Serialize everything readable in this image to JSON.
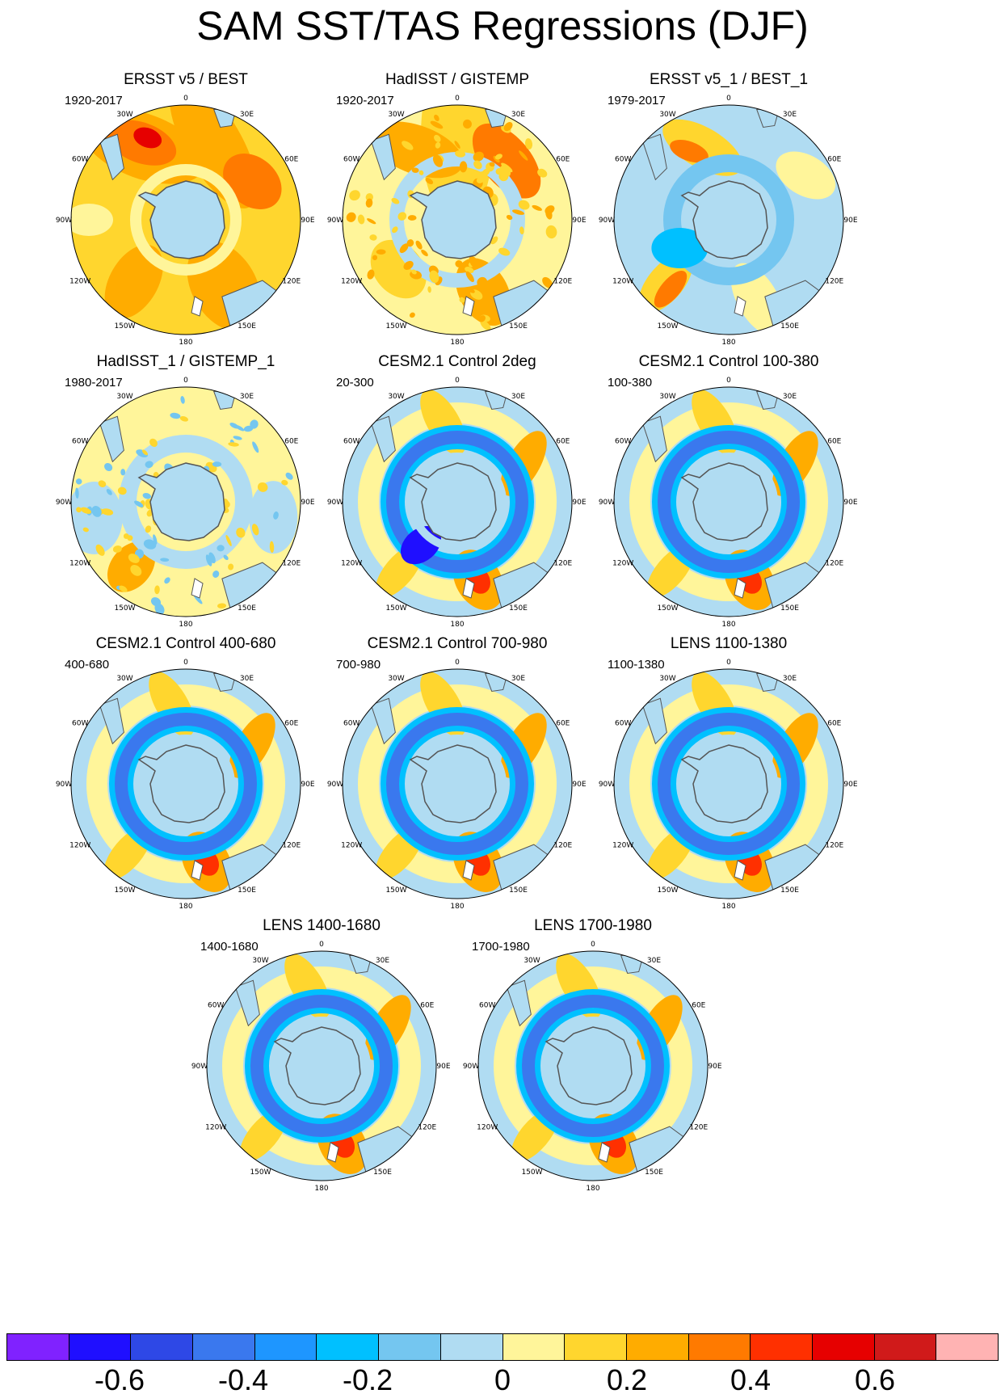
{
  "title": "SAM SST/TAS Regressions (DJF)",
  "longitude_labels": [
    "0",
    "30E",
    "60E",
    "90E",
    "120E",
    "150E",
    "180",
    "150W",
    "120W",
    "90W",
    "60W",
    "30W"
  ],
  "panels": [
    {
      "title": "ERSST v5 / BEST",
      "period": "1920-2017",
      "pattern": "warm"
    },
    {
      "title": "HadISST / GISTEMP",
      "period": "1920-2017",
      "pattern": "warm_speckled"
    },
    {
      "title": "ERSST v5_1 / BEST_1",
      "period": "1979-2017",
      "pattern": "mixed"
    },
    {
      "title": "HadISST_1 / GISTEMP_1",
      "period": "1980-2017",
      "pattern": "mixed_speckled"
    },
    {
      "title": "CESM2.1 Control 2deg",
      "period": "20-300",
      "pattern": "model_strong"
    },
    {
      "title": "CESM2.1 Control 100-380",
      "period": "100-380",
      "pattern": "model"
    },
    {
      "title": "CESM2.1 Control 400-680",
      "period": "400-680",
      "pattern": "model"
    },
    {
      "title": "CESM2.1 Control 700-980",
      "period": "700-980",
      "pattern": "model"
    },
    {
      "title": "LENS 1100-1380",
      "period": "1100-1380",
      "pattern": "model"
    },
    {
      "title": "LENS 1400-1680",
      "period": "1400-1680",
      "pattern": "model"
    },
    {
      "title": "LENS 1700-1980",
      "period": "1700-1980",
      "pattern": "model"
    }
  ],
  "colorbar": {
    "colors": [
      "#8022ff",
      "#1f0fff",
      "#2e48e6",
      "#3a78ee",
      "#1e96ff",
      "#00c0ff",
      "#74c6f0",
      "#b0dcf2",
      "#fff59a",
      "#ffd62e",
      "#ffac00",
      "#ff7a00",
      "#ff3000",
      "#e60000",
      "#d01a1a",
      "#ffb3b3"
    ],
    "labels": [
      "-0.6",
      "-0.4",
      "-0.2",
      "0",
      "0.2",
      "0.4",
      "0.6"
    ],
    "label_values": [
      -0.6,
      -0.4,
      -0.2,
      0,
      0.2,
      0.4,
      0.6
    ]
  },
  "palette": {
    "antarctica": "#b0dcf2",
    "land_fill": "#b0dcf2",
    "coast": "#555555"
  }
}
